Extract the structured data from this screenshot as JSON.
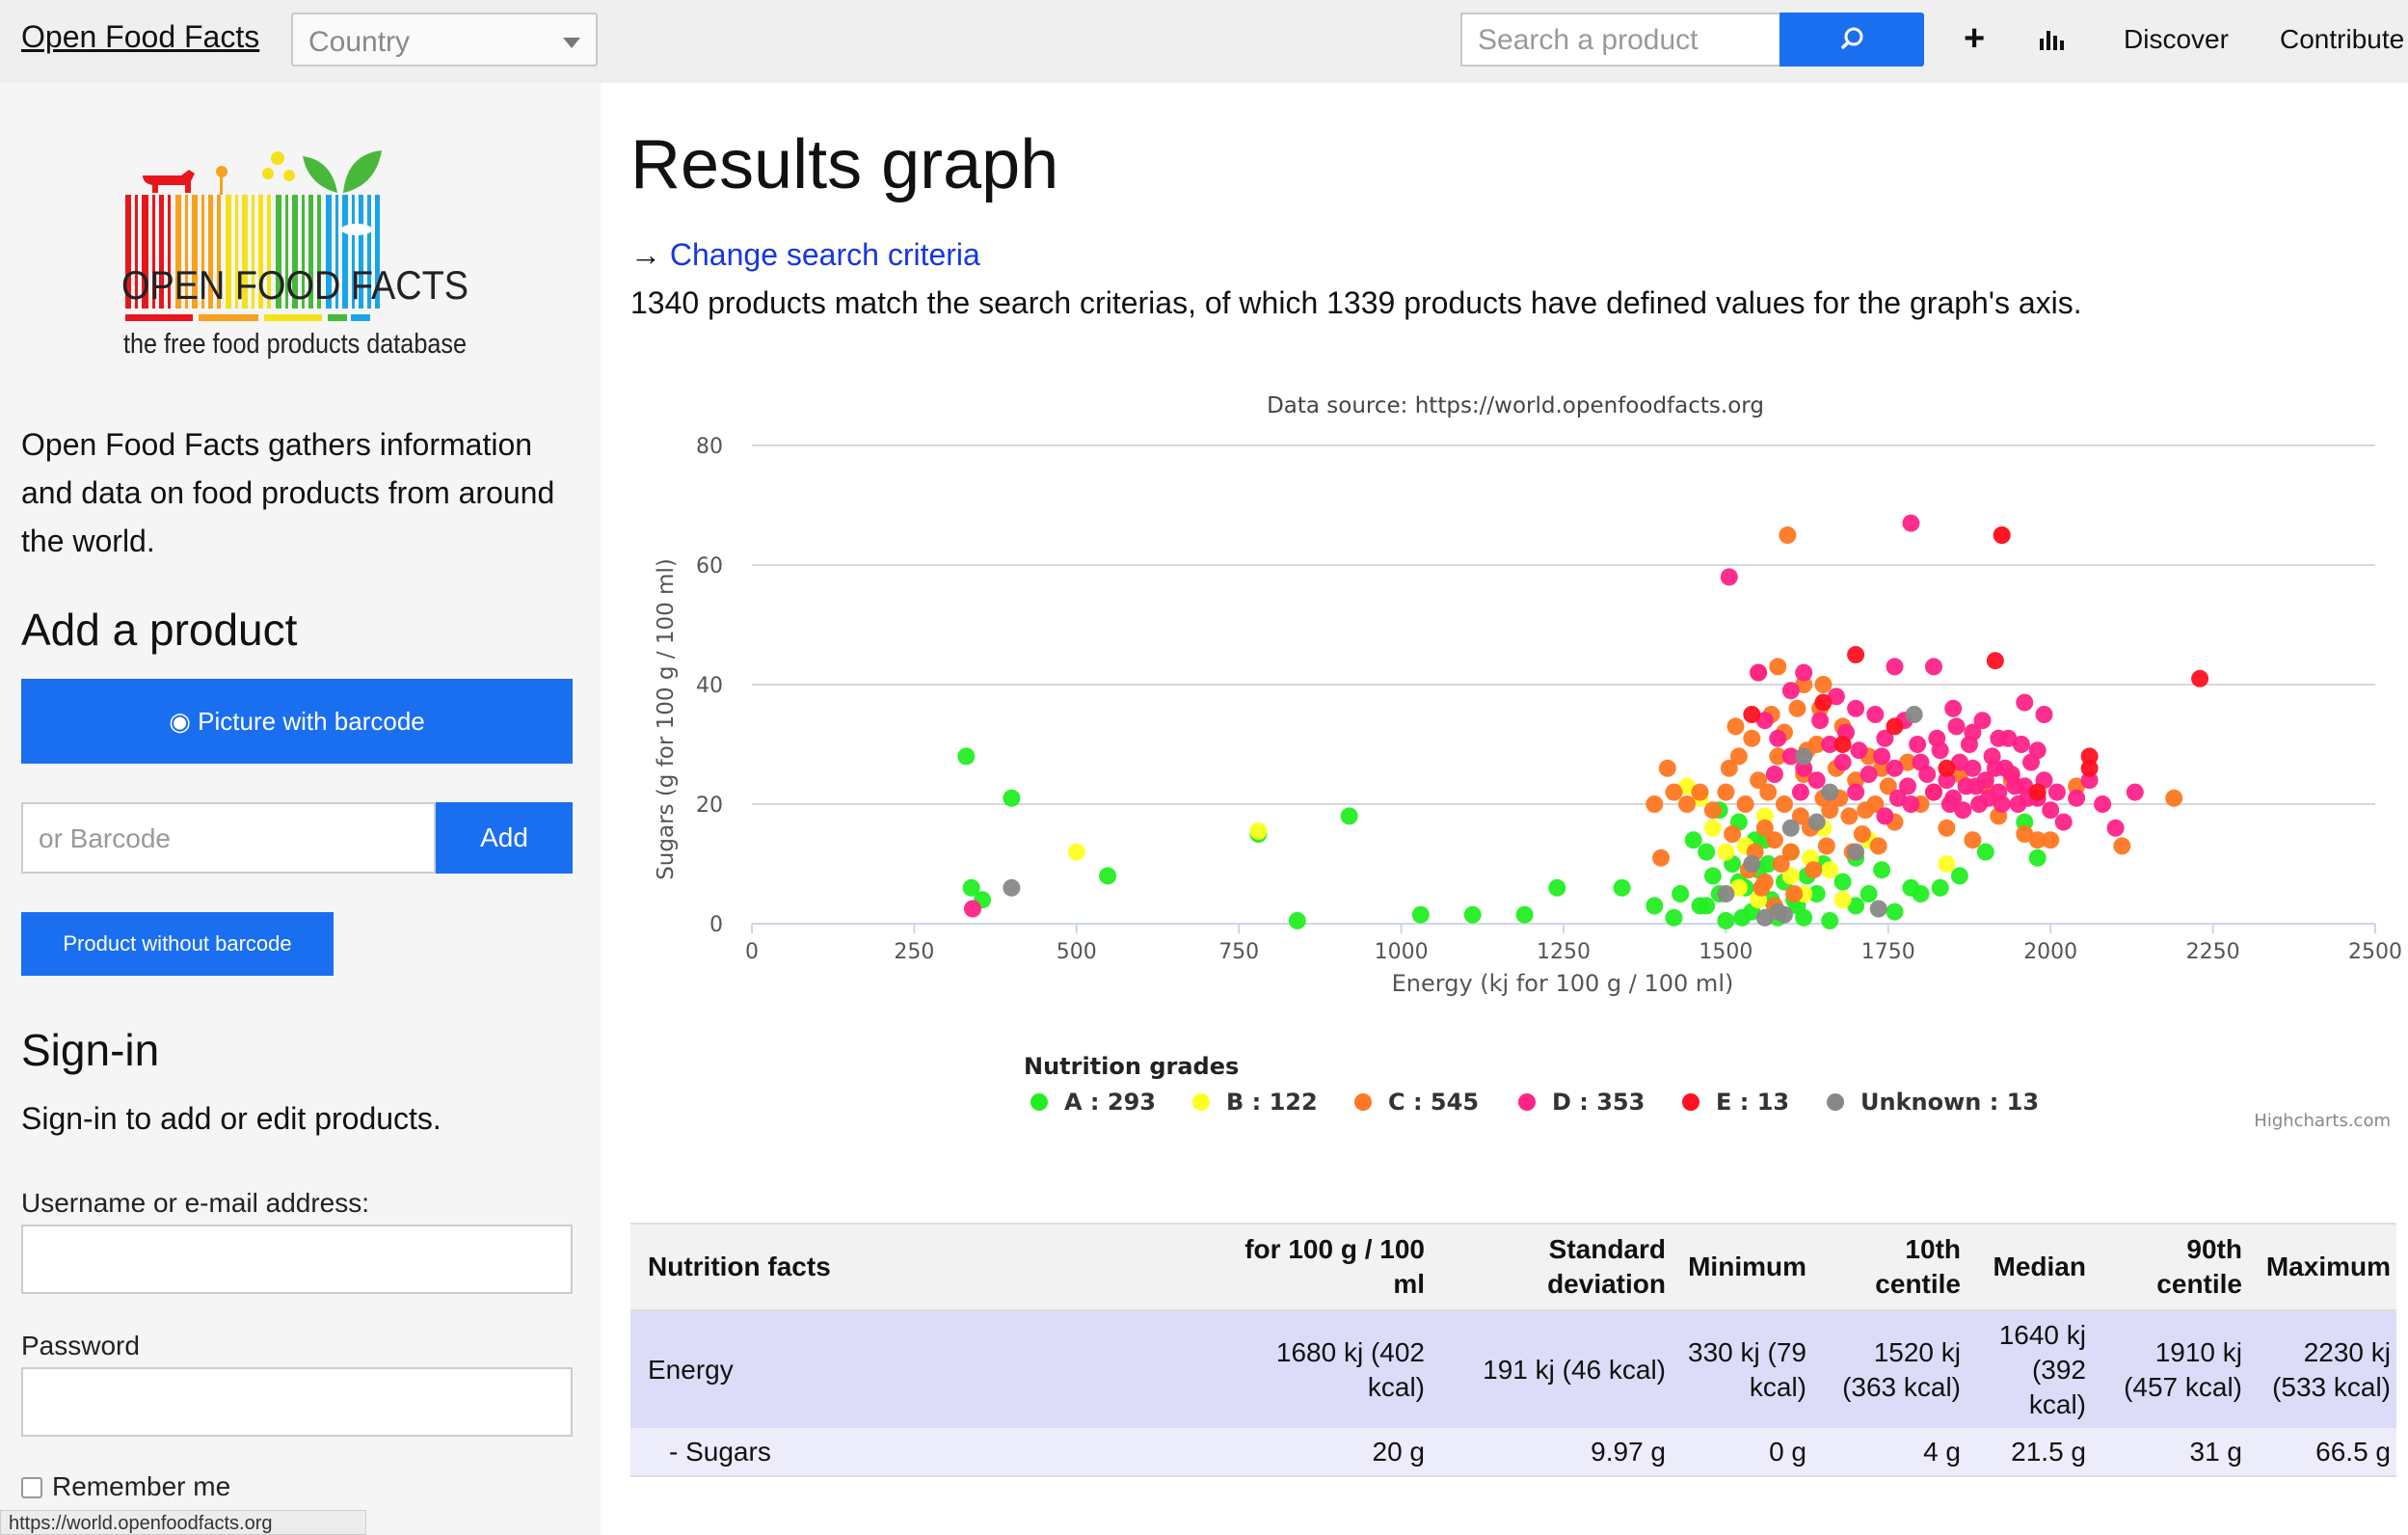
{
  "header": {
    "brand": "Open Food Facts",
    "country_placeholder": "Country",
    "search_placeholder": "Search a product",
    "nav": {
      "discover": "Discover",
      "contribute": "Contribute"
    },
    "icons": [
      "search-icon",
      "plus-icon",
      "chart-bars-icon"
    ],
    "accent_color": "#1a6ff0"
  },
  "sidebar": {
    "logo": {
      "title": "OPEN FOOD FACTS",
      "subtitle": "the free food products database"
    },
    "about": "Open Food Facts gathers information and data on food products from around the world.",
    "add_product": {
      "heading": "Add a product",
      "picture_button": "Picture with barcode",
      "barcode_placeholder": "or Barcode",
      "add_button": "Add",
      "no_barcode_button": "Product without barcode"
    },
    "signin": {
      "heading": "Sign-in",
      "text": "Sign-in to add or edit products.",
      "username_label": "Username or e-mail address:",
      "password_label": "Password",
      "remember_label": "Remember me"
    },
    "status_url": "https://world.openfoodfacts.org"
  },
  "main": {
    "title": "Results graph",
    "change_arrow": "→ ",
    "change_link": "Change search criteria",
    "result_text": "1340 products match the search criterias, of which 1339 products have defined values for the graph's axis."
  },
  "chart_data": {
    "type": "scatter",
    "title": "",
    "subtitle": "Data source: https://world.openfoodfacts.org",
    "xlabel": "Energy (kj for 100 g / 100 ml)",
    "ylabel": "Sugars (g for 100 g / 100 ml)",
    "xlim": [
      0,
      2500
    ],
    "ylim": [
      0,
      80
    ],
    "xticks": [
      0,
      250,
      500,
      750,
      1000,
      1250,
      1500,
      1750,
      2000,
      2250,
      2500
    ],
    "yticks": [
      0,
      20,
      40,
      60,
      80
    ],
    "grid": "horizontal",
    "legend_title": "Nutrition grades",
    "legend_position": "bottom",
    "credit": "Highcharts.com",
    "series": [
      {
        "name": "A",
        "count": 293,
        "color": "#22ee22",
        "points": [
          [
            330,
            28
          ],
          [
            400,
            21
          ],
          [
            338,
            6
          ],
          [
            355,
            4
          ],
          [
            548,
            8
          ],
          [
            920,
            18
          ],
          [
            780,
            15
          ],
          [
            840,
            0.5
          ],
          [
            1030,
            1.5
          ],
          [
            1110,
            1.5
          ],
          [
            1190,
            1.5
          ],
          [
            1240,
            6
          ],
          [
            1340,
            6
          ],
          [
            1390,
            3
          ],
          [
            1420,
            1
          ],
          [
            1430,
            5
          ],
          [
            1460,
            3
          ],
          [
            1470,
            12
          ],
          [
            1480,
            8
          ],
          [
            1490,
            19
          ],
          [
            1500,
            0.5
          ],
          [
            1510,
            10
          ],
          [
            1520,
            17
          ],
          [
            1530,
            6
          ],
          [
            1540,
            2
          ],
          [
            1550,
            9
          ],
          [
            1560,
            14
          ],
          [
            1570,
            4
          ],
          [
            1580,
            1
          ],
          [
            1590,
            7
          ],
          [
            1600,
            12
          ],
          [
            1610,
            3
          ],
          [
            1620,
            1
          ],
          [
            1640,
            5
          ],
          [
            1650,
            10
          ],
          [
            1660,
            0.5
          ],
          [
            1680,
            7
          ],
          [
            1700,
            3
          ],
          [
            1720,
            5
          ],
          [
            1760,
            2
          ],
          [
            1800,
            5
          ],
          [
            1830,
            6
          ],
          [
            1860,
            8
          ],
          [
            1900,
            12
          ],
          [
            1960,
            17
          ],
          [
            1980,
            11
          ],
          [
            1450,
            14
          ],
          [
            1470,
            3
          ],
          [
            1525,
            1
          ],
          [
            1545,
            14
          ],
          [
            1565,
            10
          ],
          [
            1605,
            4
          ],
          [
            1625,
            8
          ],
          [
            1700,
            11
          ],
          [
            1740,
            9
          ],
          [
            1785,
            6
          ],
          [
            1520,
            7
          ],
          [
            1490,
            5
          ]
        ]
      },
      {
        "name": "B",
        "count": 122,
        "color": "#ffff22",
        "points": [
          [
            500,
            12
          ],
          [
            780,
            15.5
          ],
          [
            1460,
            21
          ],
          [
            1500,
            12
          ],
          [
            1520,
            6
          ],
          [
            1550,
            4
          ],
          [
            1580,
            2
          ],
          [
            1600,
            8
          ],
          [
            1630,
            11
          ],
          [
            1650,
            16
          ],
          [
            1680,
            4
          ],
          [
            1720,
            14
          ],
          [
            1840,
            10
          ],
          [
            1440,
            23
          ],
          [
            1480,
            16
          ],
          [
            1530,
            13
          ],
          [
            1560,
            18
          ],
          [
            1620,
            5
          ],
          [
            1660,
            9
          ]
        ]
      },
      {
        "name": "C",
        "count": 545,
        "color": "#ff7722",
        "points": [
          [
            1595,
            65
          ],
          [
            1925,
            65
          ],
          [
            1550,
            42
          ],
          [
            1580,
            43
          ],
          [
            1620,
            40
          ],
          [
            1650,
            40
          ],
          [
            1460,
            22
          ],
          [
            1480,
            19
          ],
          [
            1500,
            22
          ],
          [
            1510,
            15
          ],
          [
            1520,
            28
          ],
          [
            1530,
            20
          ],
          [
            1540,
            31
          ],
          [
            1550,
            24
          ],
          [
            1560,
            16
          ],
          [
            1570,
            35
          ],
          [
            1580,
            28
          ],
          [
            1590,
            20
          ],
          [
            1600,
            12
          ],
          [
            1610,
            36
          ],
          [
            1620,
            25
          ],
          [
            1630,
            16
          ],
          [
            1640,
            30
          ],
          [
            1650,
            21
          ],
          [
            1660,
            19
          ],
          [
            1670,
            26
          ],
          [
            1680,
            33
          ],
          [
            1690,
            18
          ],
          [
            1700,
            24
          ],
          [
            1710,
            15
          ],
          [
            1720,
            28
          ],
          [
            1730,
            20
          ],
          [
            1740,
            26
          ],
          [
            1750,
            23
          ],
          [
            1760,
            17
          ],
          [
            1780,
            27
          ],
          [
            1800,
            20
          ],
          [
            1820,
            22
          ],
          [
            1840,
            16
          ],
          [
            1860,
            25
          ],
          [
            1880,
            14
          ],
          [
            1900,
            23
          ],
          [
            1920,
            18
          ],
          [
            1940,
            24
          ],
          [
            1960,
            15
          ],
          [
            1980,
            14
          ],
          [
            2000,
            14
          ],
          [
            2040,
            23
          ],
          [
            2110,
            13
          ],
          [
            2190,
            21
          ],
          [
            1420,
            22
          ],
          [
            1440,
            20
          ],
          [
            1400,
            11
          ],
          [
            1390,
            20
          ],
          [
            1410,
            26
          ],
          [
            1535,
            9
          ],
          [
            1555,
            6
          ],
          [
            1575,
            3
          ],
          [
            1585,
            10
          ],
          [
            1605,
            5
          ],
          [
            1545,
            12
          ],
          [
            1565,
            22
          ],
          [
            1590,
            32
          ],
          [
            1615,
            18
          ],
          [
            1635,
            9
          ],
          [
            1655,
            13
          ],
          [
            1675,
            21
          ],
          [
            1695,
            12
          ],
          [
            1715,
            19
          ],
          [
            1735,
            13
          ],
          [
            1625,
            29
          ],
          [
            1645,
            36
          ],
          [
            1505,
            26
          ],
          [
            1515,
            33
          ],
          [
            1575,
            14
          ],
          [
            1560,
            7
          ]
        ]
      },
      {
        "name": "D",
        "count": 353,
        "color": "#ff2288",
        "points": [
          [
            340,
            2.5
          ],
          [
            1505,
            58
          ],
          [
            1785,
            67
          ],
          [
            1550,
            42
          ],
          [
            1600,
            39
          ],
          [
            1620,
            42
          ],
          [
            1670,
            38
          ],
          [
            1700,
            36
          ],
          [
            1730,
            35
          ],
          [
            1760,
            43
          ],
          [
            1820,
            43
          ],
          [
            1850,
            36
          ],
          [
            1880,
            32
          ],
          [
            1920,
            31
          ],
          [
            1960,
            37
          ],
          [
            1980,
            29
          ],
          [
            1990,
            35
          ],
          [
            1560,
            34
          ],
          [
            1580,
            31
          ],
          [
            1600,
            28
          ],
          [
            1620,
            26
          ],
          [
            1640,
            24
          ],
          [
            1660,
            30
          ],
          [
            1680,
            27
          ],
          [
            1700,
            22
          ],
          [
            1720,
            25
          ],
          [
            1740,
            28
          ],
          [
            1760,
            26
          ],
          [
            1780,
            23
          ],
          [
            1800,
            27
          ],
          [
            1810,
            25
          ],
          [
            1820,
            22
          ],
          [
            1830,
            29
          ],
          [
            1840,
            24
          ],
          [
            1850,
            21
          ],
          [
            1860,
            27
          ],
          [
            1870,
            23
          ],
          [
            1880,
            26
          ],
          [
            1890,
            20
          ],
          [
            1900,
            24
          ],
          [
            1910,
            28
          ],
          [
            1920,
            22
          ],
          [
            1930,
            26
          ],
          [
            1940,
            25
          ],
          [
            1950,
            20
          ],
          [
            1960,
            23
          ],
          [
            1970,
            27
          ],
          [
            1980,
            21
          ],
          [
            1990,
            24
          ],
          [
            2000,
            19
          ],
          [
            2010,
            22
          ],
          [
            2020,
            17
          ],
          [
            2040,
            21
          ],
          [
            2060,
            24
          ],
          [
            2080,
            20
          ],
          [
            2100,
            16
          ],
          [
            2130,
            22
          ],
          [
            1575,
            25
          ],
          [
            1615,
            22
          ],
          [
            1645,
            34
          ],
          [
            1685,
            32
          ],
          [
            1705,
            29
          ],
          [
            1745,
            31
          ],
          [
            1775,
            34
          ],
          [
            1795,
            30
          ],
          [
            1825,
            31
          ],
          [
            1855,
            33
          ],
          [
            1875,
            30
          ],
          [
            1895,
            34
          ],
          [
            1915,
            26
          ],
          [
            1935,
            31
          ],
          [
            1955,
            30
          ],
          [
            1845,
            20
          ],
          [
            1865,
            19
          ],
          [
            1885,
            23
          ],
          [
            1905,
            21
          ],
          [
            1925,
            20
          ],
          [
            1945,
            23
          ],
          [
            1965,
            21
          ],
          [
            1765,
            21
          ],
          [
            1785,
            20
          ],
          [
            1745,
            18
          ]
        ]
      },
      {
        "name": "E",
        "count": 13,
        "color": "#ff1122",
        "points": [
          [
            1700,
            45
          ],
          [
            1915,
            44
          ],
          [
            1925,
            65
          ],
          [
            2230,
            41
          ],
          [
            1540,
            35
          ],
          [
            1760,
            33
          ],
          [
            2060,
            28
          ],
          [
            1680,
            30
          ],
          [
            1840,
            26
          ],
          [
            1980,
            22
          ],
          [
            2060,
            26
          ],
          [
            1650,
            37
          ]
        ]
      },
      {
        "name": "Unknown",
        "count": 13,
        "color": "#888888",
        "points": [
          [
            400,
            6
          ],
          [
            1560,
            1
          ],
          [
            1590,
            1.5
          ],
          [
            1735,
            2.5
          ],
          [
            1580,
            2
          ],
          [
            1600,
            16
          ],
          [
            1640,
            17
          ],
          [
            1620,
            28
          ],
          [
            1660,
            22
          ],
          [
            1790,
            35
          ],
          [
            1500,
            5
          ],
          [
            1540,
            10
          ],
          [
            1700,
            12
          ]
        ]
      }
    ]
  },
  "table": {
    "headers": [
      "Nutrition facts",
      "for 100 g / 100 ml",
      "Standard deviation",
      "Minimum",
      "10th centile",
      "Median",
      "90th centile",
      "Maximum"
    ],
    "rows": [
      {
        "name": "Energy",
        "values": [
          "1680 kj (402 kcal)",
          "191 kj (46 kcal)",
          "330 kj (79 kcal)",
          "1520 kj (363 kcal)",
          "1640 kj (392 kcal)",
          "1910 kj (457 kcal)",
          "2230 kj (533 kcal)"
        ]
      },
      {
        "name": "- Sugars",
        "values": [
          "20 g",
          "9.97 g",
          "0 g",
          "4 g",
          "21.5 g",
          "31 g",
          "66.5 g"
        ]
      }
    ]
  }
}
